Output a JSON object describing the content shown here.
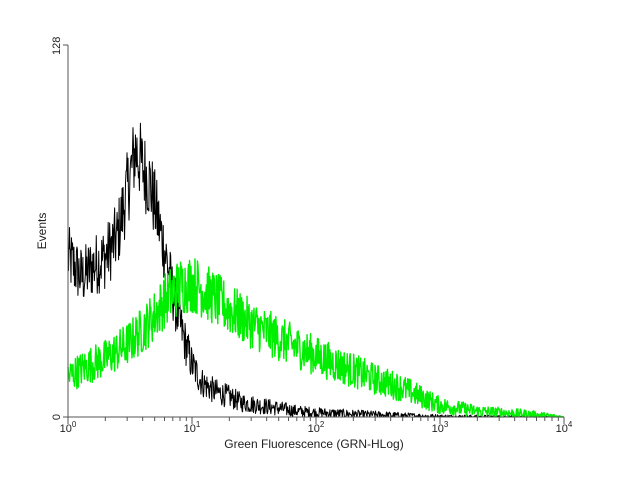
{
  "chart_data": {
    "type": "line",
    "xlabel": "Green Fluorescence (GRN-HLog)",
    "ylabel": "Events",
    "x_scale": "log",
    "xlim": [
      1,
      10000
    ],
    "ylim": [
      0,
      128
    ],
    "x_ticks": [
      {
        "value": 1,
        "base": "10",
        "exp": "0"
      },
      {
        "value": 10,
        "base": "10",
        "exp": "1"
      },
      {
        "value": 100,
        "base": "10",
        "exp": "2"
      },
      {
        "value": 1000,
        "base": "10",
        "exp": "3"
      },
      {
        "value": 10000,
        "base": "10",
        "exp": "4"
      }
    ],
    "y_ticks": [
      {
        "value": 0,
        "label": "0"
      },
      {
        "value": 128,
        "label": "128"
      }
    ],
    "grid": false,
    "series": [
      {
        "color": "#000000",
        "x": [
          1,
          1.3,
          1.6,
          2.0,
          2.5,
          3.0,
          3.5,
          4.0,
          4.6,
          5.3,
          6.2,
          7.2,
          8.5,
          10,
          12,
          15,
          20,
          25,
          35,
          50,
          70,
          100,
          200,
          500,
          1000,
          10000
        ],
        "y": [
          55,
          48,
          52,
          55,
          62,
          78,
          92,
          86,
          80,
          68,
          55,
          40,
          28,
          18,
          12,
          9,
          7,
          5,
          4,
          3,
          2,
          1.5,
          1,
          0.5,
          0.2,
          0
        ]
      },
      {
        "color": "#00ee00",
        "x": [
          1,
          1.5,
          2,
          3,
          4,
          5,
          6,
          7,
          8,
          10,
          12,
          15,
          20,
          30,
          50,
          70,
          100,
          150,
          200,
          300,
          500,
          700,
          1000,
          2000,
          5000,
          10000
        ],
        "y": [
          14,
          18,
          20,
          25,
          30,
          35,
          40,
          43,
          45,
          46,
          44,
          41,
          37,
          32,
          27,
          24,
          21,
          18,
          16,
          13,
          10,
          7,
          4,
          2,
          1,
          0
        ]
      }
    ]
  }
}
